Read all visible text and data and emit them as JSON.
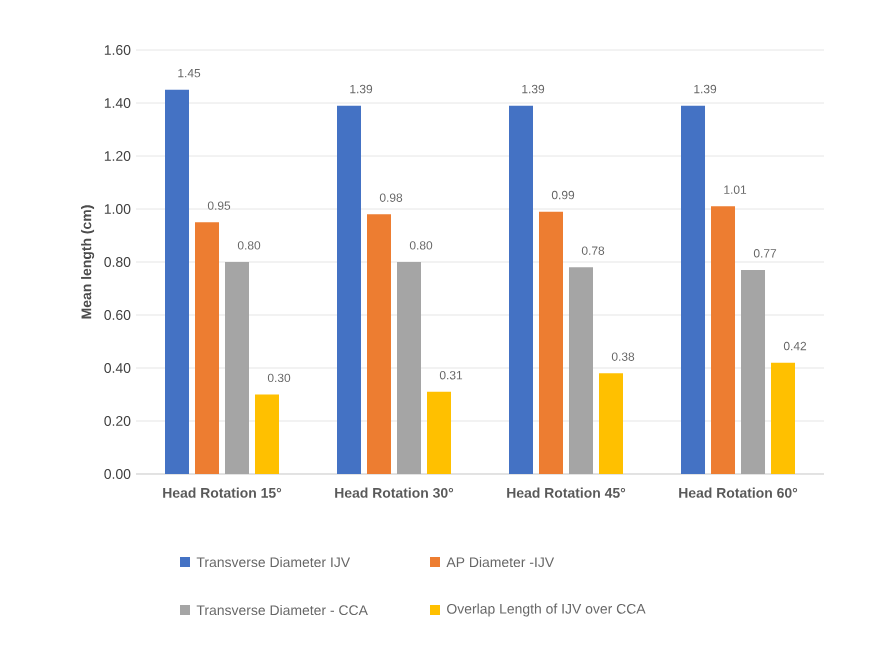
{
  "chart_data": {
    "type": "bar",
    "ylabel": "Mean length (cm)",
    "categories": [
      "Head Rotation 15°",
      "Head Rotation 30°",
      "Head Rotation 45°",
      "Head Rotation 60°"
    ],
    "series": [
      {
        "name": "Transverse Diameter IJV",
        "color": "#4472c4",
        "values": [
          1.45,
          1.39,
          1.39,
          1.39
        ],
        "value_labels": [
          "1.45",
          "1.39",
          "1.39",
          "1.39"
        ]
      },
      {
        "name": "AP Diameter -IJV",
        "color": "#ed7d31",
        "values": [
          0.95,
          0.98,
          0.99,
          1.01
        ],
        "value_labels": [
          "0.95",
          "0.98",
          "0.99",
          "1.01"
        ]
      },
      {
        "name": "Transverse Diameter - CCA",
        "color": "#a5a5a5",
        "values": [
          0.8,
          0.8,
          0.78,
          0.77
        ],
        "value_labels": [
          "0.80",
          "0.80",
          "0.78",
          "0.77"
        ]
      },
      {
        "name": "Overlap Length of IJV over CCA",
        "color": "#ffc000",
        "values": [
          0.3,
          0.31,
          0.38,
          0.42
        ],
        "value_labels": [
          "0.30",
          "0.31",
          "0.38",
          "0.42"
        ]
      }
    ],
    "ylim": [
      0,
      1.6
    ],
    "yticks": [
      {
        "value": 0,
        "label": "0.00"
      },
      {
        "value": 0.2,
        "label": "0.20"
      },
      {
        "value": 0.4,
        "label": "0.40"
      },
      {
        "value": 0.6,
        "label": "0.60"
      },
      {
        "value": 0.8,
        "label": "0.80"
      },
      {
        "value": 1.0,
        "label": "1.00"
      },
      {
        "value": 1.2,
        "label": "1.20"
      },
      {
        "value": 1.4,
        "label": "1.40"
      },
      {
        "value": 1.6,
        "label": "1.60"
      }
    ],
    "grid": "y",
    "legend": "bottom"
  }
}
